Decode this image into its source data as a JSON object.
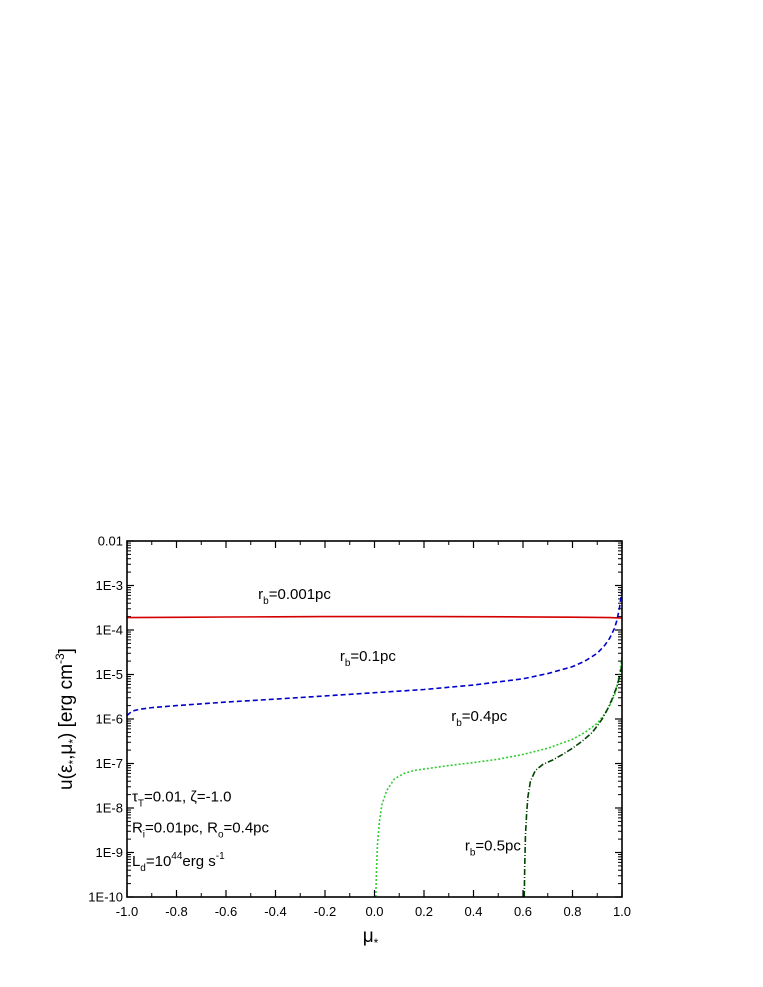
{
  "chart_data": {
    "type": "line",
    "xlabel_main": "μ",
    "xlabel_sub": "*",
    "ylabel_parts": {
      "u": "u(",
      "eps": "ε",
      "sub1": "*",
      "comma": ",",
      "mu": "μ",
      "sub2": "*",
      "close": ") [erg cm",
      "sup": "-3",
      "end": "]"
    },
    "xlim": [
      -1.0,
      1.0
    ],
    "ylim_log10": [
      -10,
      -2
    ],
    "y_scale": "log",
    "x_ticks": [
      {
        "value": -1.0,
        "label": "-1.0"
      },
      {
        "value": -0.8,
        "label": "-0.8"
      },
      {
        "value": -0.6,
        "label": "-0.6"
      },
      {
        "value": -0.4,
        "label": "-0.4"
      },
      {
        "value": -0.2,
        "label": "-0.2"
      },
      {
        "value": 0.0,
        "label": "0.0"
      },
      {
        "value": 0.2,
        "label": "0.2"
      },
      {
        "value": 0.4,
        "label": "0.4"
      },
      {
        "value": 0.6,
        "label": "0.6"
      },
      {
        "value": 0.8,
        "label": "0.8"
      },
      {
        "value": 1.0,
        "label": "1.0"
      }
    ],
    "y_ticks": [
      {
        "log10": -2,
        "label": "0.01"
      },
      {
        "log10": -3,
        "label": "1E-3"
      },
      {
        "log10": -4,
        "label": "1E-4"
      },
      {
        "log10": -5,
        "label": "1E-5"
      },
      {
        "log10": -6,
        "label": "1E-6"
      },
      {
        "log10": -7,
        "label": "1E-7"
      },
      {
        "log10": -8,
        "label": "1E-8"
      },
      {
        "log10": -9,
        "label": "1E-9"
      },
      {
        "log10": -10,
        "label": "1E-10"
      }
    ],
    "series": [
      {
        "label_main": "r",
        "label_sub": "b",
        "label_rest": "=0.001pc",
        "label_anchor": {
          "x": -0.47,
          "log10y": -3.3
        },
        "color": "#d40000",
        "dash": "",
        "x": [
          -1.0,
          -0.8,
          -0.6,
          -0.4,
          -0.2,
          0.0,
          0.2,
          0.4,
          0.6,
          0.8,
          0.9,
          0.95,
          1.0
        ],
        "y": [
          0.00019,
          0.000193,
          0.000196,
          0.000198,
          0.0002,
          0.0002,
          0.0002,
          0.000199,
          0.000197,
          0.000194,
          0.000192,
          0.00019,
          0.000185
        ]
      },
      {
        "label_main": "r",
        "label_sub": "b",
        "label_rest": "=0.1pc",
        "label_anchor": {
          "x": -0.14,
          "log10y": -4.7
        },
        "color": "#0000cc",
        "dash": "5,3",
        "x": [
          -1.0,
          -0.98,
          -0.95,
          -0.9,
          -0.8,
          -0.6,
          -0.4,
          -0.2,
          0.0,
          0.2,
          0.4,
          0.6,
          0.7,
          0.8,
          0.85,
          0.9,
          0.93,
          0.95,
          0.97,
          0.98,
          0.99,
          1.0
        ],
        "y": [
          1.2e-06,
          1.5e-06,
          1.65e-06,
          1.8e-06,
          2e-06,
          2.4e-06,
          2.8e-06,
          3.3e-06,
          3.9e-06,
          4.6e-06,
          5.8e-06,
          8e-06,
          1.05e-05,
          1.5e-05,
          2e-05,
          3e-05,
          4.5e-05,
          6.5e-05,
          0.00011,
          0.00017,
          0.00032,
          0.0008
        ]
      },
      {
        "label_main": "r",
        "label_sub": "b",
        "label_rest": "=0.4pc",
        "label_anchor": {
          "x": 0.31,
          "log10y": -6.05
        },
        "color": "#33cc33",
        "dash": "2,2",
        "x": [
          0.005,
          0.008,
          0.012,
          0.02,
          0.03,
          0.05,
          0.08,
          0.12,
          0.16,
          0.2,
          0.3,
          0.4,
          0.5,
          0.6,
          0.7,
          0.8,
          0.85,
          0.9,
          0.93,
          0.95,
          0.97,
          0.98,
          0.99,
          1.0
        ],
        "y": [
          1e-10,
          4e-10,
          1.5e-09,
          5e-09,
          1.2e-08,
          2.5e-08,
          4.5e-08,
          6e-08,
          7e-08,
          7.5e-08,
          9e-08,
          1.05e-07,
          1.25e-07,
          1.6e-07,
          2.2e-07,
          3.5e-07,
          5e-07,
          8e-07,
          1.3e-06,
          2e-06,
          3.5e-06,
          5.5e-06,
          1e-05,
          2.5e-05
        ]
      },
      {
        "label_main": "r",
        "label_sub": "b",
        "label_rest": "=0.5pc",
        "label_anchor": {
          "x": 0.365,
          "log10y": -8.95
        },
        "color": "#004400",
        "dash": "6,2,1,2",
        "x": [
          0.605,
          0.607,
          0.61,
          0.615,
          0.62,
          0.63,
          0.65,
          0.68,
          0.72,
          0.76,
          0.8,
          0.84,
          0.88,
          0.9,
          0.92,
          0.94,
          0.96,
          0.98,
          0.99,
          1.0
        ],
        "y": [
          1e-10,
          5e-10,
          2.5e-09,
          8e-09,
          1.8e-08,
          4e-08,
          7e-08,
          9.5e-08,
          1.2e-07,
          1.6e-07,
          2.2e-07,
          3.2e-07,
          5e-07,
          7e-07,
          1e-06,
          1.6e-06,
          2.8e-06,
          5.5e-06,
          9e-06,
          1.6e-05
        ]
      }
    ],
    "annotations": [
      {
        "parts": [
          {
            "t": "τ"
          },
          {
            "t": "T",
            "sub": true
          },
          {
            "t": "=0.01, ζ=-1.0"
          }
        ],
        "anchor": {
          "x": -0.98,
          "log10y": -7.85
        }
      },
      {
        "parts": [
          {
            "t": "R"
          },
          {
            "t": "i",
            "sub": true
          },
          {
            "t": "=0.01pc, R"
          },
          {
            "t": "o",
            "sub": true
          },
          {
            "t": "=0.4pc"
          }
        ],
        "anchor": {
          "x": -0.98,
          "log10y": -8.55
        }
      },
      {
        "parts": [
          {
            "t": "L"
          },
          {
            "t": "d",
            "sub": true
          },
          {
            "t": "=10"
          },
          {
            "t": "44",
            "sup": true
          },
          {
            "t": "erg s"
          },
          {
            "t": "-1",
            "sup": true
          }
        ],
        "anchor": {
          "x": -0.98,
          "log10y": -9.3
        }
      }
    ]
  }
}
